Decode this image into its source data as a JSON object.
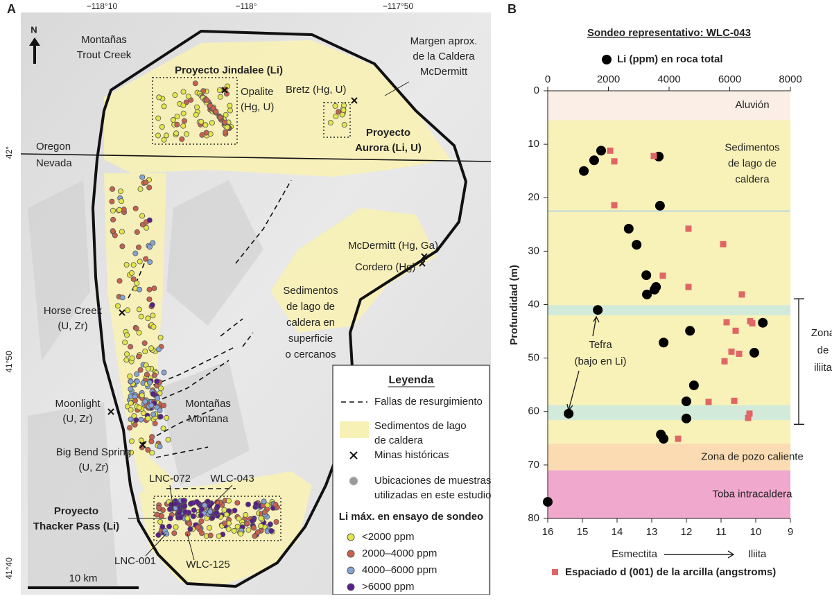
{
  "map": {
    "panel_label": "A",
    "north": "N",
    "lon_labels": [
      "−118°10",
      "−118°",
      "−117°50"
    ],
    "lat_labels": [
      "42°",
      "41°50",
      "41°40"
    ],
    "labels": [
      [
        "Montañas",
        "Trout Creek"
      ],
      [
        "Margen aprox.",
        "de la Caldera",
        "McDermitt"
      ],
      "Proyecto Jindalee (Li)",
      [
        "Opalite",
        "(Hg, U)"
      ],
      "Bretz (Hg, U)",
      [
        "Proyecto",
        "Aurora (Li, U)"
      ],
      "Oregon",
      "Nevada",
      "McDermitt (Hg, Ga)",
      "Cordero (Hg)",
      [
        "Sedimentos",
        "de lago de",
        "caldera en",
        "superficie",
        "o cercanos"
      ],
      [
        "Horse Creek",
        "(U, Zr)"
      ],
      [
        "Moonlight",
        "(U, Zr)"
      ],
      [
        "Montañas",
        "Montana"
      ],
      [
        "Big Bend Spring",
        "(U, Zr)"
      ],
      "LNC-072",
      "WLC-043",
      [
        "Proyecto",
        "Thacker Pass (Li)"
      ],
      "LNC-001",
      "WLC-125",
      "10 km"
    ],
    "legend": {
      "title": "Leyenda",
      "faults": "Fallas de resurgimiento",
      "sediments": [
        "Sedimentos de lago",
        "de caldera"
      ],
      "mines": "Minas históricas",
      "samples": [
        "Ubicaciones de muestras",
        "utilizadas en este estudio"
      ],
      "li_title": "Li máx. en ensayo de sondeo",
      "li_classes": [
        {
          "label": "<2000 ppm",
          "color": "#e2e64a"
        },
        {
          "label": "2000–4000 ppm",
          "color": "#c8614f"
        },
        {
          "label": "4000–6000 ppm",
          "color": "#86a3d4"
        },
        {
          "label": ">6000 ppm",
          "color": "#5a1f8c"
        }
      ]
    }
  },
  "chart_data": {
    "type": "scatter",
    "panel_label": "B",
    "title": "Sondeo representativo: WLC-043",
    "ylabel": "Profundidad (m)",
    "x2label_left": "Esmectita",
    "x2label_right": "Iliita",
    "xlim": [
      0,
      8000
    ],
    "xticks": [
      0,
      2000,
      4000,
      6000,
      8000
    ],
    "x2lim": [
      16,
      9
    ],
    "x2ticks": [
      16,
      15,
      14,
      13,
      12,
      11,
      10,
      9
    ],
    "ylim": [
      80,
      0
    ],
    "yticks": [
      0,
      10,
      20,
      30,
      40,
      50,
      60,
      70,
      80
    ],
    "series": [
      {
        "name": "Li (ppm) en roca total",
        "color": "#000000",
        "marker": "circle",
        "x": [
          1760,
          1530,
          1190,
          3660,
          3700,
          2670,
          2930,
          3250,
          3570,
          3520,
          3270,
          1650,
          7090,
          4690,
          3820,
          6810,
          4820,
          4570,
          4570,
          690,
          3730,
          3820,
          0
        ],
        "y": [
          11.2,
          13.0,
          15.0,
          12.3,
          21.5,
          25.8,
          28.8,
          34.5,
          36.7,
          37.2,
          38.1,
          41.0,
          43.4,
          44.9,
          47.1,
          49.0,
          55.1,
          58.1,
          61.3,
          60.4,
          64.3,
          65.1,
          76.9
        ]
      },
      {
        "name": "Espaciado d (001) de la arcilla (angstroms)",
        "color": "#e06666",
        "marker": "square",
        "axis": "x2",
        "x": [
          14.2,
          14.08,
          12.94,
          14.08,
          11.94,
          10.94,
          12.68,
          11.94,
          10.4,
          10.84,
          10.58,
          10.16,
          10.1,
          10.7,
          10.48,
          10.9,
          11.36,
          10.62,
          10.18,
          10.22,
          12.24
        ],
        "y": [
          11.2,
          13.2,
          12.2,
          21.4,
          25.8,
          28.7,
          34.6,
          36.7,
          38.1,
          43.3,
          44.9,
          43.1,
          43.5,
          48.8,
          49.2,
          50.6,
          58.2,
          58.0,
          60.4,
          61.2,
          65.1
        ]
      }
    ],
    "bands": [
      {
        "label": "Aluvión",
        "range": [
          0,
          5.5
        ],
        "color": "#fbeee6"
      },
      {
        "label": [
          "Sedimentos",
          "de lago de",
          "caldera"
        ],
        "range": [
          5.5,
          66
        ],
        "color": "#f8f1b8"
      },
      {
        "label": "Zona de pozo caliente",
        "range": [
          66,
          71
        ],
        "color": "#fbdcb2"
      },
      {
        "label": "Toba intracaldera",
        "range": [
          71,
          80
        ],
        "color": "#f0a8cd"
      }
    ],
    "tephra_bands": [
      [
        40.1,
        42.0
      ],
      [
        58.8,
        61.6
      ]
    ],
    "marker_lines": [
      22.5
    ],
    "tephra_label": [
      "Tefra",
      "(bajo en Li)"
    ],
    "illite_zone": {
      "label": [
        "Zona",
        "de",
        "iliita"
      ],
      "range": [
        38.9,
        62.4
      ]
    }
  }
}
